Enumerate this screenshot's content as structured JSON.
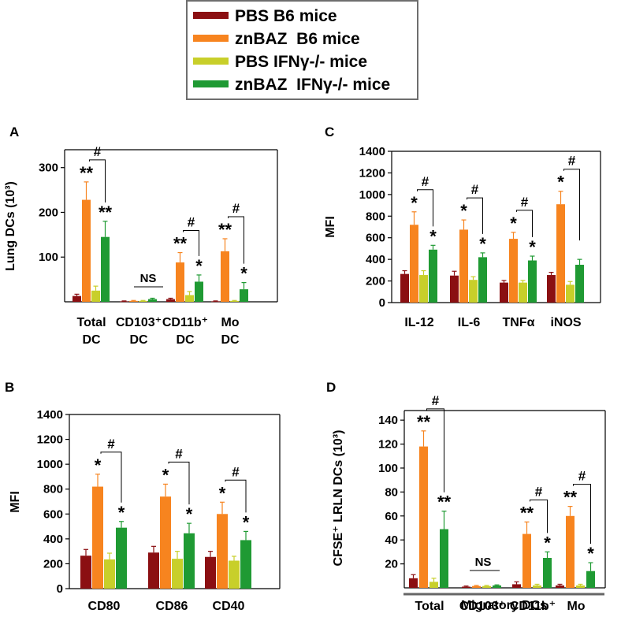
{
  "legend": [
    {
      "label": "PBS B6 mice",
      "color": "#8b0f12"
    },
    {
      "label": "znBAZ  B6 mice",
      "color": "#f7841f"
    },
    {
      "label": "PBS IFNγ-/- mice",
      "color": "#c8cf2a"
    },
    {
      "label": "znBAZ  IFNγ-/- mice",
      "color": "#1f9a33"
    }
  ],
  "chart_data": [
    {
      "panel": "A",
      "type": "bar",
      "ylabel": "Lung DCs (10³)",
      "ylim": [
        0,
        340
      ],
      "yticks": [
        100,
        200,
        300
      ],
      "yticklabels": [
        "100",
        "200",
        "300"
      ],
      "categories": [
        [
          "Total",
          "DC"
        ],
        [
          "CD103⁺",
          "DC"
        ],
        [
          "CD11b⁺",
          "DC"
        ],
        [
          "Mo",
          "DC"
        ]
      ],
      "series": [
        {
          "name": "PBS B6 mice",
          "values": [
            13,
            1,
            6,
            1
          ],
          "errors": [
            4,
            1,
            2,
            1
          ]
        },
        {
          "name": "znBAZ  B6 mice",
          "values": [
            228,
            2,
            88,
            113
          ],
          "errors": [
            40,
            1,
            22,
            28
          ]
        },
        {
          "name": "PBS IFNγ-/- mice",
          "values": [
            25,
            2,
            15,
            2
          ],
          "errors": [
            10,
            1,
            8,
            1
          ]
        },
        {
          "name": "znBAZ  IFNγ-/- mice",
          "values": [
            145,
            6,
            45,
            28
          ],
          "errors": [
            35,
            2,
            15,
            15
          ]
        }
      ],
      "stars": [
        [
          "",
          "**",
          "",
          "**"
        ],
        [
          "",
          "",
          "",
          ""
        ],
        [
          "",
          "**",
          "",
          "*"
        ],
        [
          "",
          "**",
          "",
          "*"
        ]
      ],
      "hash": [
        "#",
        "",
        "#",
        "#"
      ],
      "ns": [
        "",
        "NS",
        "",
        ""
      ],
      "footer": ""
    },
    {
      "panel": "C",
      "type": "bar",
      "ylabel": "MFI",
      "ylim": [
        0,
        1400
      ],
      "yticks": [
        0,
        200,
        400,
        600,
        800,
        1000,
        1200,
        1400
      ],
      "yticklabels": [
        "0",
        "200",
        "400",
        "600",
        "800",
        "1000",
        "1200",
        "1400"
      ],
      "categories": [
        [
          "IL-12"
        ],
        [
          "IL-6"
        ],
        [
          "TNFα"
        ],
        [
          "iNOS"
        ]
      ],
      "series": [
        {
          "name": "PBS B6 mice",
          "values": [
            265,
            250,
            185,
            255
          ],
          "errors": [
            30,
            40,
            20,
            25
          ]
        },
        {
          "name": "znBAZ  B6 mice",
          "values": [
            720,
            675,
            590,
            910
          ],
          "errors": [
            120,
            90,
            60,
            120
          ]
        },
        {
          "name": "PBS IFNγ-/- mice",
          "values": [
            255,
            210,
            185,
            165
          ],
          "errors": [
            40,
            30,
            20,
            30
          ]
        },
        {
          "name": "znBAZ  IFNγ-/- mice",
          "values": [
            490,
            420,
            390,
            350
          ],
          "errors": [
            40,
            40,
            40,
            50
          ]
        }
      ],
      "stars": [
        [
          "",
          "*",
          "",
          "*"
        ],
        [
          "",
          "*",
          "",
          "*"
        ],
        [
          "",
          "*",
          "",
          "*"
        ],
        [
          "",
          "*",
          "",
          ""
        ]
      ],
      "hash": [
        "#",
        "#",
        "#",
        "#"
      ],
      "ns": [
        "",
        "",
        "",
        ""
      ],
      "footer": ""
    },
    {
      "panel": "B",
      "type": "bar",
      "ylabel": "MFI",
      "ylim": [
        0,
        1400
      ],
      "yticks": [
        0,
        200,
        400,
        600,
        800,
        1000,
        1200,
        1400
      ],
      "yticklabels": [
        "0",
        "200",
        "400",
        "600",
        "800",
        "1000",
        "1200",
        "1400"
      ],
      "categories": [
        [
          "CD80"
        ],
        [
          "CD86"
        ],
        [
          "CD40"
        ]
      ],
      "series": [
        {
          "name": "PBS B6 mice",
          "values": [
            265,
            290,
            255
          ],
          "errors": [
            50,
            50,
            45
          ]
        },
        {
          "name": "znBAZ  B6 mice",
          "values": [
            820,
            740,
            600
          ],
          "errors": [
            100,
            100,
            95
          ]
        },
        {
          "name": "PBS IFNγ-/- mice",
          "values": [
            235,
            240,
            225
          ],
          "errors": [
            50,
            60,
            35
          ]
        },
        {
          "name": "znBAZ  IFNγ-/- mice",
          "values": [
            490,
            445,
            390
          ],
          "errors": [
            50,
            80,
            70
          ]
        }
      ],
      "stars": [
        [
          "",
          "*",
          "",
          "*"
        ],
        [
          "",
          "*",
          "",
          "*"
        ],
        [
          "",
          "*",
          "",
          "*"
        ]
      ],
      "hash": [
        "#",
        "#",
        "#"
      ],
      "ns": [
        "",
        "",
        ""
      ],
      "footer": ""
    },
    {
      "panel": "D",
      "type": "bar",
      "ylabel": "CFSE⁺ LRLN DCs (10³)",
      "ylim": [
        0,
        148
      ],
      "yticks": [
        20,
        40,
        60,
        80,
        100,
        120,
        140
      ],
      "yticklabels": [
        "20",
        "40",
        "60",
        "80",
        "100",
        "120",
        "140"
      ],
      "categories": [
        [
          "Total"
        ],
        [
          "CD103⁺"
        ],
        [
          "CD11b⁺"
        ],
        [
          "Mo"
        ]
      ],
      "series": [
        {
          "name": "PBS B6 mice",
          "values": [
            8,
            1,
            3,
            2
          ],
          "errors": [
            3,
            0.5,
            2,
            1
          ]
        },
        {
          "name": "znBAZ  B6 mice",
          "values": [
            118,
            1.5,
            45,
            60
          ],
          "errors": [
            13,
            0.5,
            10,
            8
          ]
        },
        {
          "name": "PBS IFNγ-/- mice",
          "values": [
            5,
            1.5,
            2,
            2
          ],
          "errors": [
            3,
            0.5,
            1,
            1
          ]
        },
        {
          "name": "znBAZ  IFNγ-/- mice",
          "values": [
            49,
            2,
            25,
            14
          ],
          "errors": [
            15,
            0.5,
            5,
            7
          ]
        }
      ],
      "stars": [
        [
          "",
          "**",
          "",
          "**"
        ],
        [
          "",
          "",
          "",
          ""
        ],
        [
          "",
          "**",
          "",
          "*"
        ],
        [
          "",
          "**",
          "",
          "*"
        ]
      ],
      "hash": [
        "#",
        "",
        "#",
        "#"
      ],
      "ns": [
        "",
        "NS",
        "",
        ""
      ],
      "footer": "Migratory DCs"
    }
  ]
}
